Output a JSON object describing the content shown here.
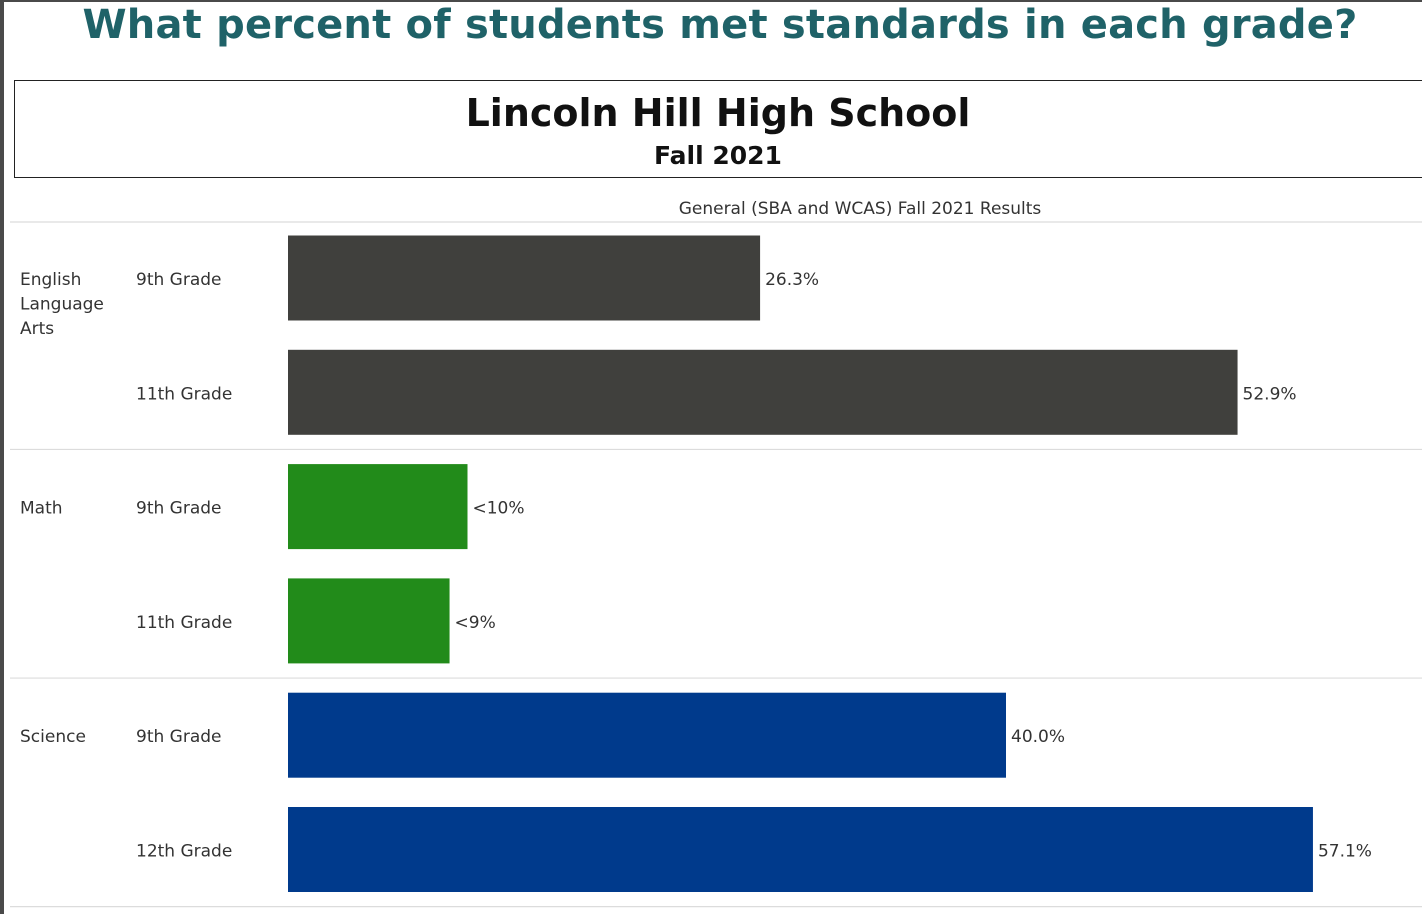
{
  "page_title": "What percent of students met standards in each grade?",
  "school": {
    "name": "Lincoln Hill High School",
    "term": "Fall 2021"
  },
  "colors": {
    "title": "#1f6268",
    "English Language Arts": "#40403d",
    "Math": "#228b1a",
    "Science": "#003a8c"
  },
  "chart_data": {
    "type": "bar",
    "orientation": "horizontal",
    "title": "General (SBA and WCAS) Fall 2021 Results",
    "xlim": [
      0,
      60
    ],
    "grid": false,
    "groups": [
      {
        "name": "English Language Arts",
        "name_lines": [
          "English",
          "Language",
          "Arts"
        ],
        "bars": [
          {
            "category": "9th Grade",
            "value": 26.3,
            "label": "26.3%"
          },
          {
            "category": "11th Grade",
            "value": 52.9,
            "label": "52.9%"
          }
        ]
      },
      {
        "name": "Math",
        "name_lines": [
          "Math"
        ],
        "bars": [
          {
            "category": "9th Grade",
            "value": 10,
            "label": "<10%"
          },
          {
            "category": "11th Grade",
            "value": 9,
            "label": "<9%"
          }
        ]
      },
      {
        "name": "Science",
        "name_lines": [
          "Science"
        ],
        "bars": [
          {
            "category": "9th Grade",
            "value": 40.0,
            "label": "40.0%"
          },
          {
            "category": "12th Grade",
            "value": 57.1,
            "label": "57.1%"
          }
        ]
      }
    ]
  }
}
